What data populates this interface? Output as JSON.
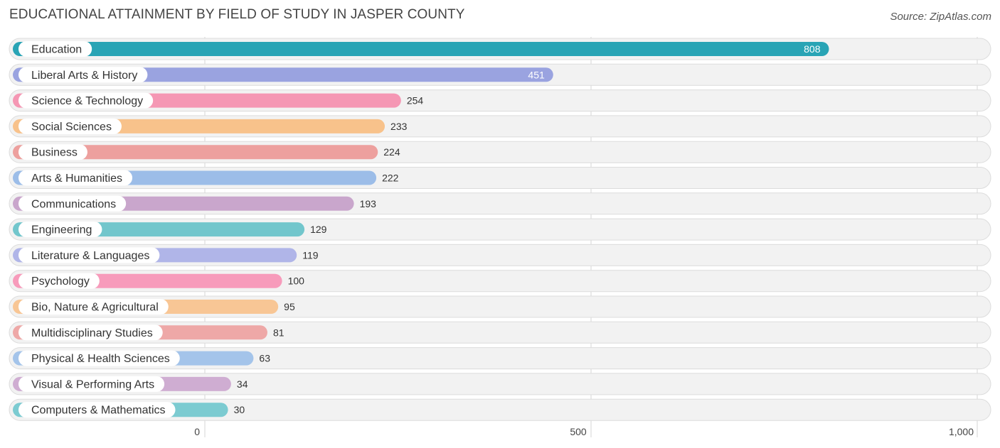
{
  "header": {
    "title": "EDUCATIONAL ATTAINMENT BY FIELD OF STUDY IN JASPER COUNTY",
    "source": "Source: ZipAtlas.com"
  },
  "chart_data": {
    "type": "bar",
    "orientation": "horizontal",
    "title": "EDUCATIONAL ATTAINMENT BY FIELD OF STUDY IN JASPER COUNTY",
    "xlim": [
      0,
      1000
    ],
    "x_ticks": [
      0,
      500,
      1000
    ],
    "x_tick_labels": [
      "0",
      "500",
      "1,000"
    ],
    "grid": true,
    "categories": [
      "Education",
      "Liberal Arts & History",
      "Science & Technology",
      "Social Sciences",
      "Business",
      "Arts & Humanities",
      "Communications",
      "Engineering",
      "Literature & Languages",
      "Psychology",
      "Bio, Nature & Agricultural",
      "Multidisciplinary Studies",
      "Physical & Health Sciences",
      "Visual & Performing Arts",
      "Computers & Mathematics"
    ],
    "values": [
      808,
      451,
      254,
      233,
      224,
      222,
      193,
      129,
      119,
      100,
      95,
      81,
      63,
      34,
      30
    ],
    "colors": [
      "#29a4b5",
      "#9aa3e0",
      "#f597b4",
      "#f8c28b",
      "#eda09e",
      "#9cbde8",
      "#c9a6cc",
      "#72c6cc",
      "#b0b5e8",
      "#f79bbb",
      "#f8c695",
      "#eea8a7",
      "#a4c4ea",
      "#cfadd2",
      "#7ccbd1"
    ]
  }
}
